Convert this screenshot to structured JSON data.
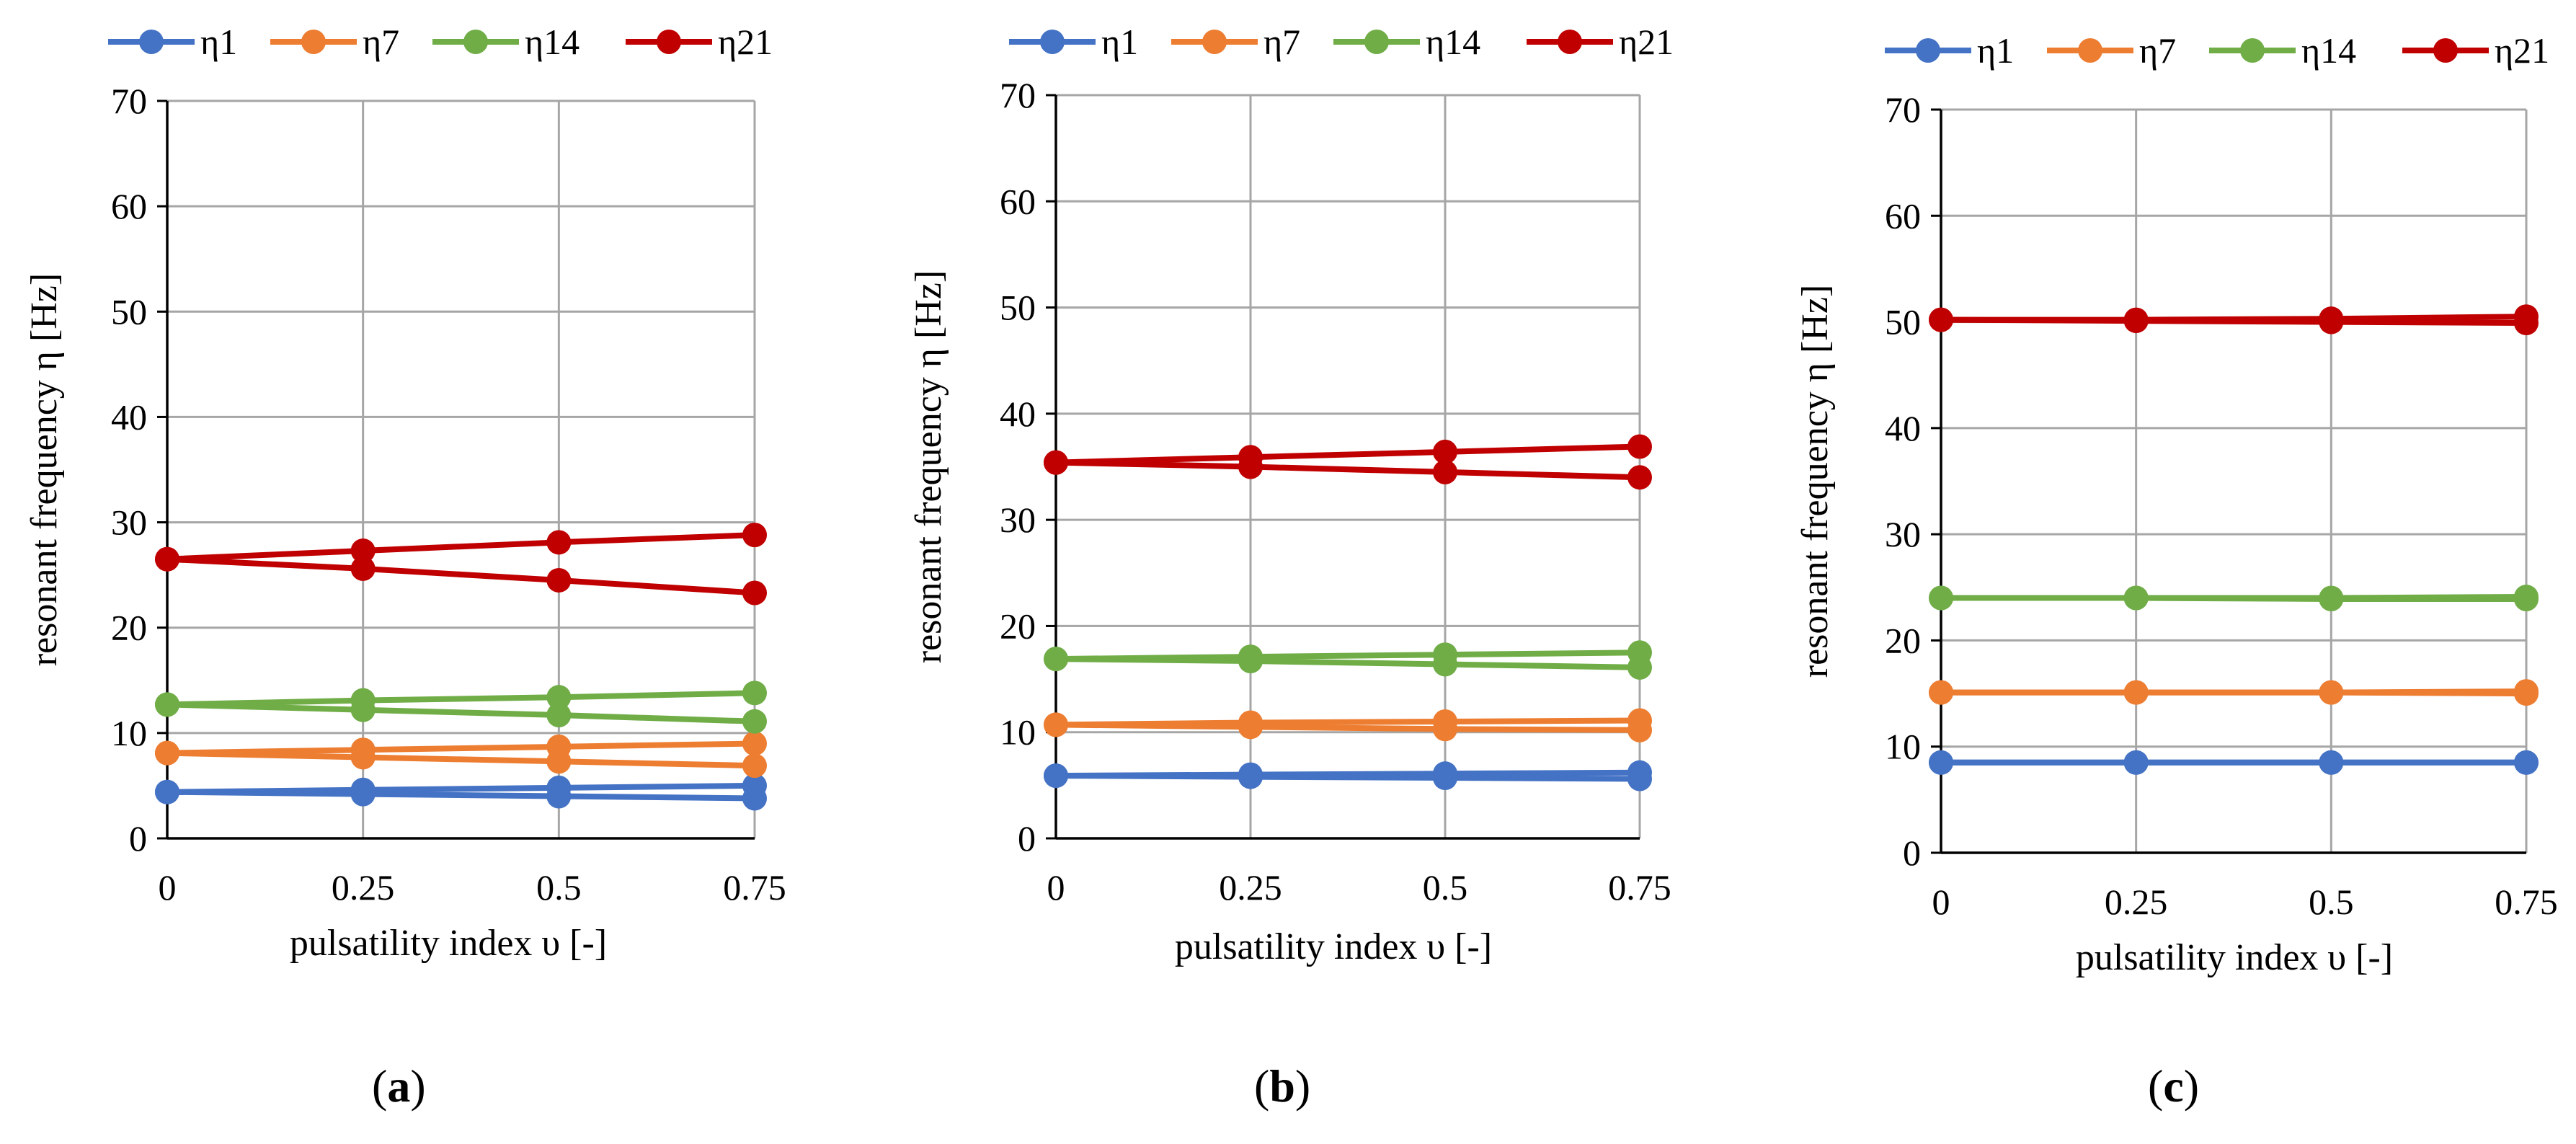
{
  "colors": {
    "eta1": "#4472C4",
    "eta7": "#ED7D31",
    "eta14": "#70AD47",
    "eta21": "#C00000",
    "grid": "#A6A6A6",
    "axis": "#000000"
  },
  "chart_data": [
    {
      "type": "line",
      "panel": "(a)",
      "panel_letter": "a",
      "xlabel": "pulsatility index  υ [-]",
      "ylabel": "resonant frequency η [Hz]",
      "x": [
        0,
        0.25,
        0.5,
        0.75
      ],
      "x_tick_labels": [
        "0",
        "0.25",
        "0.5",
        "0.75"
      ],
      "y_ticks": [
        0,
        10,
        20,
        30,
        40,
        50,
        60,
        70
      ],
      "ylim": [
        0,
        70
      ],
      "grid": true,
      "legend": [
        "η1",
        "η7",
        "η14",
        "η21"
      ],
      "legend_position": "top",
      "series": [
        {
          "name": "η1",
          "color_key": "eta1",
          "values": [
            4.4,
            4.6,
            4.8,
            5.0
          ]
        },
        {
          "name": "η1",
          "color_key": "eta1",
          "values": [
            4.4,
            4.2,
            4.0,
            3.8
          ]
        },
        {
          "name": "η7",
          "color_key": "eta7",
          "values": [
            8.1,
            8.4,
            8.7,
            9.0
          ]
        },
        {
          "name": "η7",
          "color_key": "eta7",
          "values": [
            8.1,
            7.7,
            7.3,
            6.9
          ]
        },
        {
          "name": "η14",
          "color_key": "eta14",
          "values": [
            12.7,
            13.1,
            13.4,
            13.8
          ]
        },
        {
          "name": "η14",
          "color_key": "eta14",
          "values": [
            12.7,
            12.2,
            11.7,
            11.1
          ]
        },
        {
          "name": "η21",
          "color_key": "eta21",
          "values": [
            26.5,
            27.3,
            28.1,
            28.8
          ]
        },
        {
          "name": "η21",
          "color_key": "eta21",
          "values": [
            26.5,
            25.6,
            24.5,
            23.3
          ]
        }
      ]
    },
    {
      "type": "line",
      "panel": "(b)",
      "panel_letter": "b",
      "xlabel": "pulsatility index  υ [-]",
      "ylabel": "resonant frequency η [Hz]",
      "x": [
        0,
        0.25,
        0.5,
        0.75
      ],
      "x_tick_labels": [
        "0",
        "0.25",
        "0.5",
        "0.75"
      ],
      "y_ticks": [
        0,
        10,
        20,
        30,
        40,
        50,
        60,
        70
      ],
      "ylim": [
        0,
        70
      ],
      "grid": true,
      "legend": [
        "η1",
        "η7",
        "η14",
        "η21"
      ],
      "legend_position": "top",
      "series": [
        {
          "name": "η1",
          "color_key": "eta1",
          "values": [
            5.9,
            6.0,
            6.1,
            6.2
          ]
        },
        {
          "name": "η1",
          "color_key": "eta1",
          "values": [
            5.9,
            5.8,
            5.7,
            5.6
          ]
        },
        {
          "name": "η7",
          "color_key": "eta7",
          "values": [
            10.7,
            10.9,
            11.0,
            11.1
          ]
        },
        {
          "name": "η7",
          "color_key": "eta7",
          "values": [
            10.7,
            10.5,
            10.3,
            10.2
          ]
        },
        {
          "name": "η14",
          "color_key": "eta14",
          "values": [
            16.9,
            17.1,
            17.3,
            17.5
          ]
        },
        {
          "name": "η14",
          "color_key": "eta14",
          "values": [
            16.9,
            16.7,
            16.4,
            16.1
          ]
        },
        {
          "name": "η21",
          "color_key": "eta21",
          "values": [
            35.4,
            35.9,
            36.4,
            36.9
          ]
        },
        {
          "name": "η21",
          "color_key": "eta21",
          "values": [
            35.4,
            35.0,
            34.5,
            34.0
          ]
        }
      ]
    },
    {
      "type": "line",
      "panel": "(c)",
      "panel_letter": "c",
      "xlabel": "pulsatility index  υ [-]",
      "ylabel": "resonant frequency η [Hz]",
      "x": [
        0,
        0.25,
        0.5,
        0.75
      ],
      "x_tick_labels": [
        "0",
        "0.25",
        "0.5",
        "0.75"
      ],
      "y_ticks": [
        0,
        10,
        20,
        30,
        40,
        50,
        60,
        70
      ],
      "ylim": [
        0,
        70
      ],
      "grid": true,
      "legend": [
        "η1",
        "η7",
        "η14",
        "η21"
      ],
      "legend_position": "top",
      "series": [
        {
          "name": "η1",
          "color_key": "eta1",
          "values": [
            8.5,
            8.5,
            8.5,
            8.5
          ]
        },
        {
          "name": "η1",
          "color_key": "eta1",
          "values": [
            8.5,
            8.5,
            8.5,
            8.5
          ]
        },
        {
          "name": "η7",
          "color_key": "eta7",
          "values": [
            15.1,
            15.1,
            15.1,
            15.2
          ]
        },
        {
          "name": "η7",
          "color_key": "eta7",
          "values": [
            15.1,
            15.1,
            15.1,
            15.0
          ]
        },
        {
          "name": "η14",
          "color_key": "eta14",
          "values": [
            24.0,
            24.0,
            24.0,
            24.1
          ]
        },
        {
          "name": "η14",
          "color_key": "eta14",
          "values": [
            24.0,
            24.0,
            23.9,
            23.9
          ]
        },
        {
          "name": "η21",
          "color_key": "eta21",
          "values": [
            50.2,
            50.2,
            50.3,
            50.5
          ]
        },
        {
          "name": "η21",
          "color_key": "eta21",
          "values": [
            50.2,
            50.1,
            50.0,
            49.9
          ]
        }
      ]
    }
  ]
}
